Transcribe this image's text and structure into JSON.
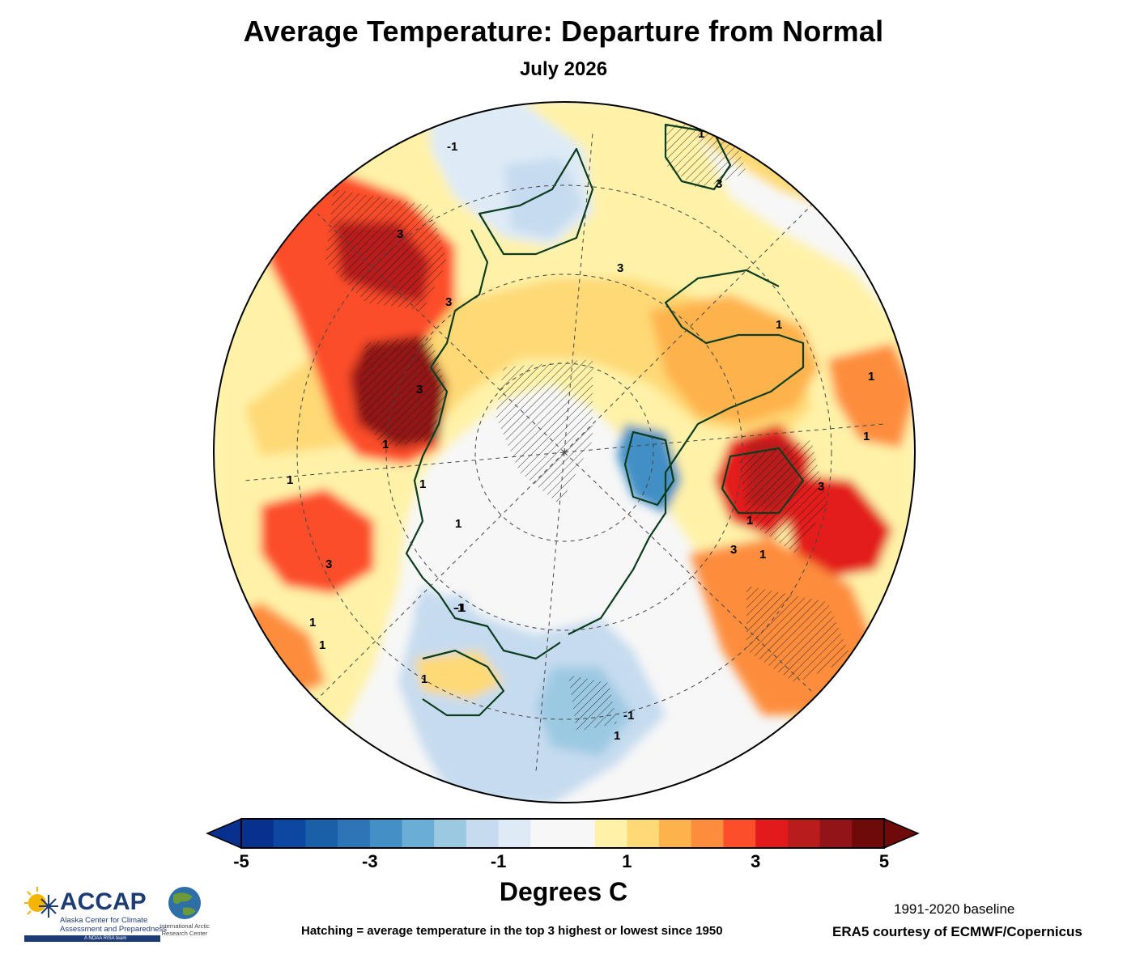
{
  "title": "Average Temperature: Departure from Normal",
  "subtitle": "July 2026",
  "colorbar": {
    "title": "Degrees C",
    "tick_labels": [
      "-5",
      "-3",
      "-1",
      "1",
      "3",
      "5"
    ],
    "tick_values": [
      -5,
      -3,
      -1,
      1,
      3,
      5
    ],
    "range": [
      -5,
      5
    ],
    "step": 0.5,
    "colors": [
      "#08308e",
      "#0d47a1",
      "#1a60a8",
      "#2d75b7",
      "#438fc6",
      "#6aaed6",
      "#9cc9e2",
      "#c6dbef",
      "#deebf7",
      "#f7f7f7",
      "#f7f7f7",
      "#fff2a8",
      "#fed976",
      "#feb24c",
      "#fd8d3c",
      "#fc4e2a",
      "#e31a1c",
      "#b81c1c",
      "#931418",
      "#6e0a0a"
    ],
    "under_color": "#08308e",
    "over_color": "#6e0a0a"
  },
  "map": {
    "contour_labels": [
      "-1",
      "1",
      "3",
      "3",
      "3",
      "1",
      "1",
      "1",
      "3",
      "1",
      "3",
      "1",
      "1",
      "3",
      "3",
      "3",
      "1",
      "1",
      "1",
      "1",
      "-1",
      "-1",
      "-1",
      "1",
      "1",
      "1"
    ]
  },
  "notes": {
    "hatching": "Hatching = average temperature in the top 3 highest or lowest since 1950",
    "baseline": "1991-2020 baseline",
    "source": "ERA5 courtesy of ECMWF/Copernicus"
  },
  "logos": {
    "accap_brand": "ACCAP",
    "accap_sub": "Alaska Center for Climate Assessment and Preparedness",
    "accap_tag": "A NOAA RISA team",
    "iarc_name": "International Arctic Research Center"
  },
  "palette": {
    "coast": "#0b3d1e",
    "grid": "#444444",
    "frame": "#000000"
  }
}
